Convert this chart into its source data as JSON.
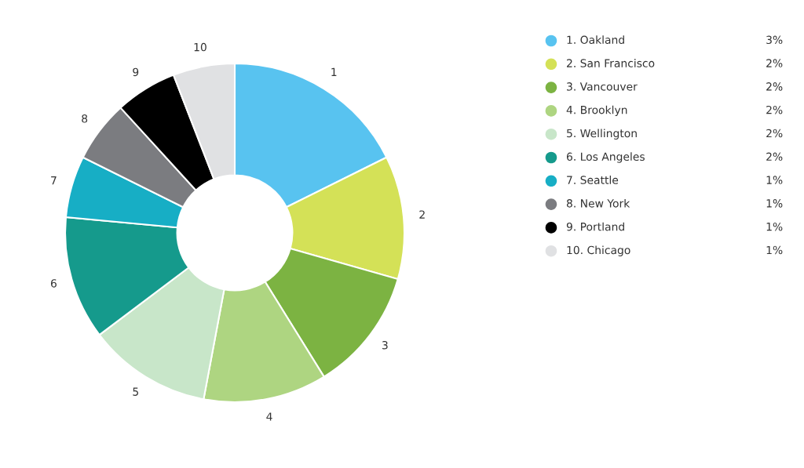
{
  "chart_data": {
    "type": "donut",
    "categories": [
      "1. Oakland",
      "2. San Francisco",
      "3. Vancouver",
      "4. Brooklyn",
      "5. Wellington",
      "6. Los Angeles",
      "7. Seattle",
      "8. New York",
      "9. Portland",
      "10. Chicago"
    ],
    "values": [
      3,
      2,
      2,
      2,
      2,
      2,
      1,
      1,
      1,
      1
    ],
    "value_labels": [
      "3%",
      "2%",
      "2%",
      "2%",
      "2%",
      "2%",
      "1%",
      "1%",
      "1%",
      "1%"
    ],
    "colors": [
      "#58c3f0",
      "#d4e157",
      "#7cb342",
      "#aed581",
      "#c8e6c9",
      "#159a8c",
      "#17aec5",
      "#7b7c80",
      "#000000",
      "#e0e1e3"
    ],
    "annotations": [
      "1",
      "2",
      "3",
      "4",
      "5",
      "6",
      "7",
      "8",
      "9",
      "10"
    ],
    "legend": "right"
  }
}
